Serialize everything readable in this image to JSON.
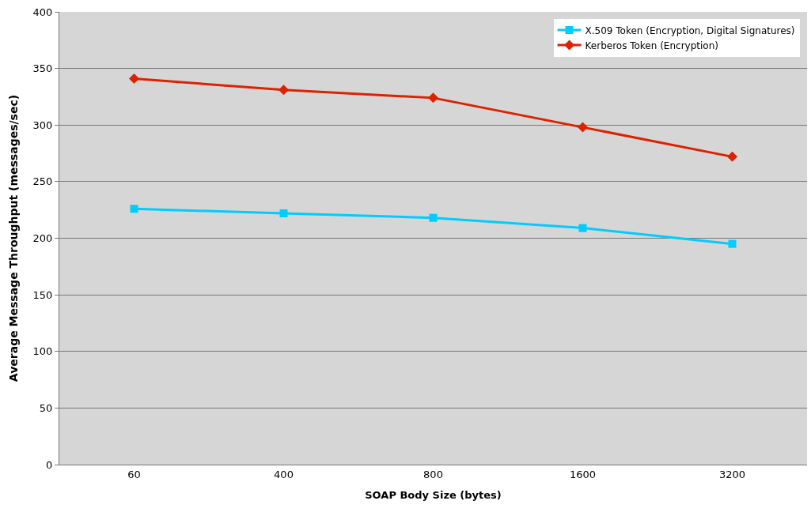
{
  "chart_data": {
    "type": "line",
    "xlabel": "SOAP Body Size (bytes)",
    "ylabel": "Average Message Throughput (messages/sec)",
    "categories": [
      "60",
      "400",
      "800",
      "1600",
      "3200"
    ],
    "series": [
      {
        "name": "X.509 Token (Encryption, Digital Signatures)",
        "color": "#00ccff",
        "marker": "square",
        "values": [
          226,
          222,
          218,
          209,
          195
        ]
      },
      {
        "name": "Kerberos Token (Encryption)",
        "color": "#dd2200",
        "marker": "diamond",
        "values": [
          341,
          331,
          324,
          298,
          272
        ]
      }
    ],
    "ylim": [
      0,
      400
    ],
    "yticks": [
      0,
      50,
      100,
      150,
      200,
      250,
      300,
      350,
      400
    ],
    "grid": "y",
    "legend": "top right",
    "line_style": "solid"
  }
}
